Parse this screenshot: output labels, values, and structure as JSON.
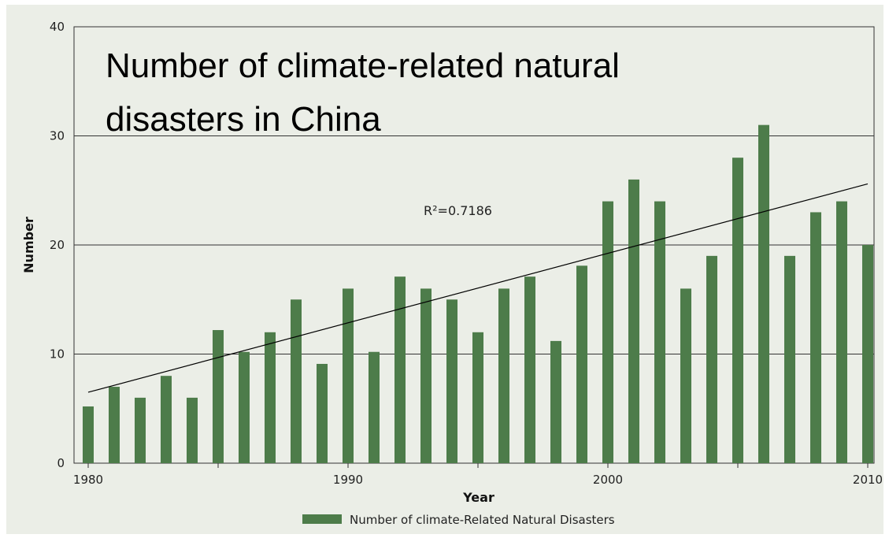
{
  "chart_data": {
    "type": "bar",
    "title": "Number of climate-related natural disasters in China",
    "title_lines": [
      "Number of climate-related natural",
      "disasters in China"
    ],
    "xlabel": "Year",
    "ylabel": "Number",
    "xlim": [
      1980,
      2010
    ],
    "ylim": [
      0,
      40
    ],
    "yticks": [
      "0",
      "10",
      "20",
      "30",
      "40"
    ],
    "xticks": [
      "1980",
      "1990",
      "2000",
      "2010"
    ],
    "grid": "horizontal",
    "legend": "bottom",
    "bar_color": "#4d7c4a",
    "x": [
      1980,
      1981,
      1982,
      1983,
      1984,
      1985,
      1986,
      1987,
      1988,
      1989,
      1990,
      1991,
      1992,
      1993,
      1994,
      1995,
      1996,
      1997,
      1998,
      1999,
      2000,
      2001,
      2002,
      2003,
      2004,
      2005,
      2006,
      2007,
      2008,
      2009,
      2010
    ],
    "series": [
      {
        "name": "Number of climate-Related Natural Disasters",
        "values": [
          5.2,
          7,
          6,
          8,
          6,
          12.2,
          10.2,
          12,
          15,
          9.1,
          16,
          10.2,
          17.1,
          16,
          15,
          12,
          16,
          17.1,
          11.2,
          18.1,
          24,
          26,
          24,
          16,
          19,
          28,
          31,
          19,
          23,
          24,
          20
        ]
      }
    ],
    "trendline": {
      "type": "linear",
      "r_squared_label": "R²=0.7186",
      "start": [
        1980,
        6.5
      ],
      "end": [
        2010,
        25.6
      ]
    }
  }
}
